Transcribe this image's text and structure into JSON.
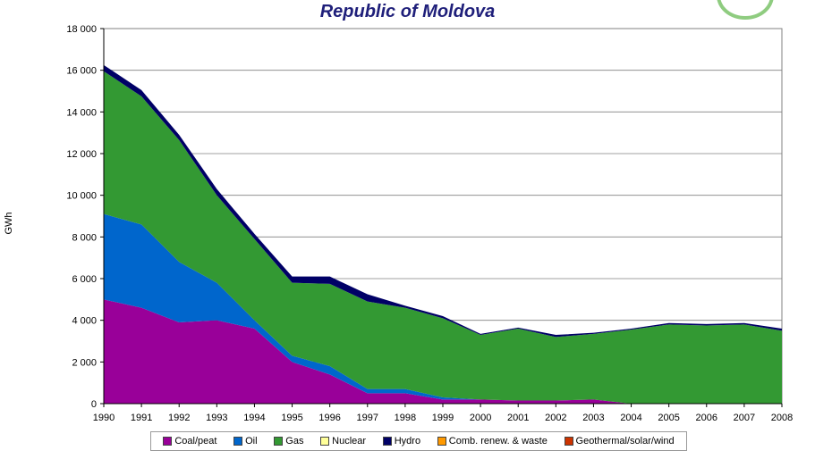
{
  "chart_data": {
    "type": "area",
    "stacked": true,
    "title": "Republic of Moldova",
    "xlabel": "",
    "ylabel": "GWh",
    "ylim": [
      0,
      18000
    ],
    "yticks": [
      0,
      2000,
      4000,
      6000,
      8000,
      10000,
      12000,
      14000,
      16000,
      18000
    ],
    "ytick_labels": [
      "0",
      "2 000",
      "4 000",
      "6 000",
      "8 000",
      "10 000",
      "12 000",
      "14 000",
      "16 000",
      "18 000"
    ],
    "grid": true,
    "legend_position": "bottom",
    "categories": [
      "1990",
      "1991",
      "1992",
      "1993",
      "1994",
      "1995",
      "1996",
      "1997",
      "1998",
      "1999",
      "2000",
      "2001",
      "2002",
      "2003",
      "2004",
      "2005",
      "2006",
      "2007",
      "2008"
    ],
    "series": [
      {
        "name": "Coal/peat",
        "color": "#990099",
        "values": [
          5000,
          4600,
          3900,
          4000,
          3600,
          2000,
          1400,
          500,
          500,
          200,
          200,
          150,
          150,
          200,
          0,
          0,
          0,
          0,
          0
        ]
      },
      {
        "name": "Oil",
        "color": "#0066cc",
        "values": [
          4100,
          4000,
          2900,
          1800,
          400,
          300,
          400,
          200,
          200,
          100,
          0,
          0,
          0,
          0,
          0,
          0,
          0,
          0,
          0
        ]
      },
      {
        "name": "Gas",
        "color": "#339933",
        "values": [
          6850,
          6150,
          5850,
          4200,
          3900,
          3500,
          3950,
          4200,
          3900,
          3800,
          3100,
          3450,
          3050,
          3150,
          3550,
          3800,
          3750,
          3800,
          3500
        ]
      },
      {
        "name": "Nuclear",
        "color": "#ffff99",
        "values": [
          0,
          0,
          0,
          0,
          0,
          0,
          0,
          0,
          0,
          0,
          0,
          0,
          0,
          0,
          0,
          0,
          0,
          0,
          0
        ]
      },
      {
        "name": "Hydro",
        "color": "#000066",
        "values": [
          300,
          300,
          250,
          300,
          250,
          300,
          350,
          350,
          100,
          100,
          50,
          50,
          100,
          50,
          50,
          70,
          70,
          70,
          100
        ]
      },
      {
        "name": "Comb. renew. & waste",
        "color": "#ff9900",
        "values": [
          0,
          0,
          0,
          0,
          0,
          0,
          0,
          0,
          0,
          0,
          0,
          0,
          0,
          0,
          0,
          0,
          0,
          0,
          0
        ]
      },
      {
        "name": "Geothermal/solar/wind",
        "color": "#cc3300",
        "values": [
          0,
          0,
          0,
          0,
          0,
          0,
          0,
          0,
          0,
          0,
          0,
          0,
          0,
          0,
          0,
          0,
          0,
          0,
          0
        ]
      }
    ]
  }
}
